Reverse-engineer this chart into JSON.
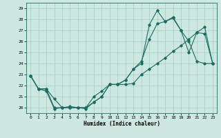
{
  "xlabel": "Humidex (Indice chaleur)",
  "bg_color": "#cce8e0",
  "grid_color": "#aacfc8",
  "line_color": "#1a6b60",
  "xlim": [
    -0.5,
    23.5
  ],
  "ylim": [
    19.5,
    29.5
  ],
  "yticks": [
    20,
    21,
    22,
    23,
    24,
    25,
    26,
    27,
    28,
    29
  ],
  "xticks": [
    0,
    1,
    2,
    3,
    4,
    5,
    6,
    7,
    8,
    9,
    10,
    11,
    12,
    13,
    14,
    15,
    16,
    17,
    18,
    19,
    20,
    21,
    22,
    23
  ],
  "line1_x": [
    0,
    1,
    2,
    3,
    4,
    5,
    6,
    7,
    8,
    9,
    10,
    11,
    12,
    13,
    14,
    15,
    16,
    17,
    18,
    19,
    20,
    21,
    22,
    23
  ],
  "line1_y": [
    22.9,
    21.7,
    21.7,
    20.8,
    20.0,
    20.0,
    20.0,
    20.0,
    20.5,
    21.0,
    22.1,
    22.1,
    22.5,
    23.5,
    24.0,
    27.5,
    28.8,
    27.8,
    28.2,
    27.0,
    26.0,
    24.2,
    24.0,
    24.0
  ],
  "line2_x": [
    0,
    1,
    2,
    3,
    4,
    5,
    6,
    7,
    8,
    9,
    10,
    11,
    12,
    13,
    14,
    15,
    16,
    17,
    18,
    19,
    20,
    21,
    22,
    23
  ],
  "line2_y": [
    22.9,
    21.7,
    21.5,
    19.9,
    20.0,
    20.1,
    20.0,
    19.9,
    20.5,
    21.0,
    22.1,
    22.1,
    22.5,
    23.5,
    24.2,
    26.2,
    27.6,
    27.8,
    28.1,
    27.0,
    25.0,
    26.8,
    26.7,
    24.0
  ],
  "line3_x": [
    0,
    1,
    2,
    3,
    4,
    5,
    6,
    7,
    8,
    9,
    10,
    11,
    12,
    13,
    14,
    15,
    16,
    17,
    18,
    19,
    20,
    21,
    22,
    23
  ],
  "line3_y": [
    22.9,
    21.7,
    21.7,
    20.0,
    20.0,
    20.0,
    20.0,
    20.0,
    21.0,
    21.5,
    22.1,
    22.1,
    22.1,
    22.2,
    23.0,
    23.5,
    24.0,
    24.5,
    25.1,
    25.6,
    26.2,
    26.8,
    27.3,
    24.0
  ]
}
